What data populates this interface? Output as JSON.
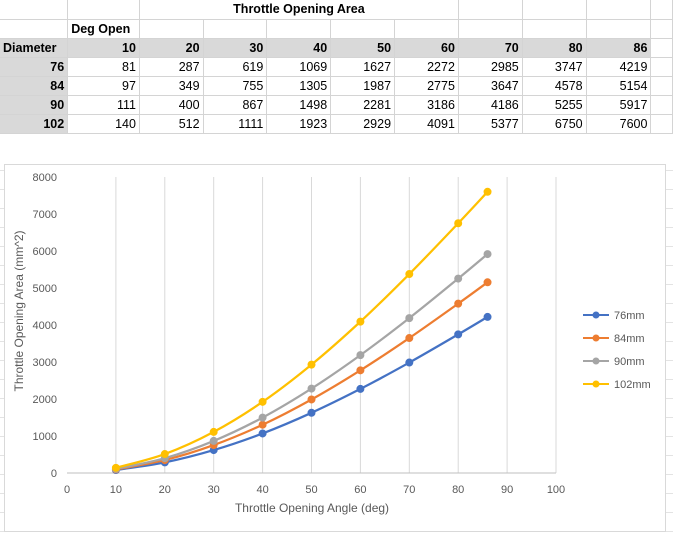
{
  "sheet": {
    "title": "Throttle Opening Area",
    "deg_open_label": "Deg Open",
    "diameter_label": "Diameter",
    "angles": [
      "10",
      "20",
      "30",
      "40",
      "50",
      "60",
      "70",
      "80",
      "86"
    ],
    "rows": [
      {
        "diameter": "76",
        "values": [
          "81",
          "287",
          "619",
          "1069",
          "1627",
          "2272",
          "2985",
          "3747",
          "4219"
        ]
      },
      {
        "diameter": "84",
        "values": [
          "97",
          "349",
          "755",
          "1305",
          "1987",
          "2775",
          "3647",
          "4578",
          "5154"
        ]
      },
      {
        "diameter": "90",
        "values": [
          "111",
          "400",
          "867",
          "1498",
          "2281",
          "3186",
          "4186",
          "5255",
          "5917"
        ]
      },
      {
        "diameter": "102",
        "values": [
          "140",
          "512",
          "1111",
          "1923",
          "2929",
          "4091",
          "5377",
          "6750",
          "7600"
        ]
      }
    ]
  },
  "chart_data": {
    "type": "line",
    "title": "",
    "xlabel": "Throttle Opening Angle (deg)",
    "ylabel": "Throttle Opening Area (mm^2)",
    "xlim": [
      0,
      100
    ],
    "ylim": [
      0,
      8000
    ],
    "xticks": [
      0,
      10,
      20,
      30,
      40,
      50,
      60,
      70,
      80,
      90,
      100
    ],
    "yticks": [
      0,
      1000,
      2000,
      3000,
      4000,
      5000,
      6000,
      7000,
      8000
    ],
    "grid": "vertical",
    "legend": "right",
    "x": [
      10,
      20,
      30,
      40,
      50,
      60,
      70,
      80,
      86
    ],
    "series": [
      {
        "name": "76mm",
        "color": "#4472c4",
        "values": [
          81,
          287,
          619,
          1069,
          1627,
          2272,
          2985,
          3747,
          4219
        ]
      },
      {
        "name": "84mm",
        "color": "#ed7d31",
        "values": [
          97,
          349,
          755,
          1305,
          1987,
          2775,
          3647,
          4578,
          5154
        ]
      },
      {
        "name": "90mm",
        "color": "#a5a5a5",
        "values": [
          111,
          400,
          867,
          1498,
          2281,
          3186,
          4186,
          5255,
          5917
        ]
      },
      {
        "name": "102mm",
        "color": "#ffc000",
        "values": [
          140,
          512,
          1111,
          1923,
          2929,
          4091,
          5377,
          6750,
          7600
        ]
      }
    ]
  }
}
